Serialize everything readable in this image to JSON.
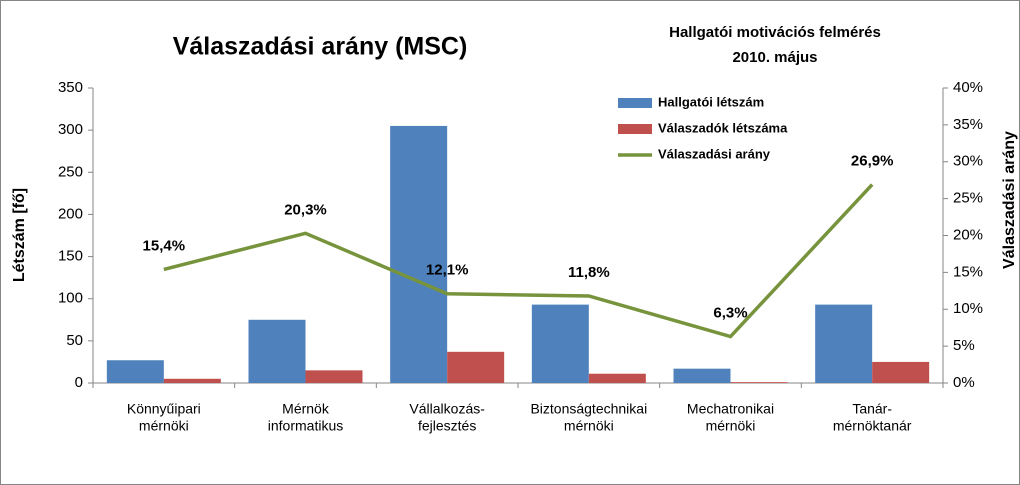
{
  "chart_data": {
    "type": "bar-line",
    "title": "Válaszadási arány (MSC)",
    "subtitle": [
      "Hallgatói motivációs felmérés",
      "2010. május"
    ],
    "y_label": "Létszám [fő]",
    "y2_label": "Válaszadási arány",
    "categories": [
      [
        "Könnyűipari",
        "mérnöki"
      ],
      [
        "Mérnök",
        "informatikus"
      ],
      [
        "Vállalkozás-",
        "fejlesztés"
      ],
      [
        "Biztonságtechnikai",
        "mérnöki"
      ],
      [
        "Mechatronikai",
        "mérnöki"
      ],
      [
        "Tanár-",
        "mérnöktanár"
      ]
    ],
    "series": [
      {
        "name": "Hallgatói létszám",
        "type": "bar",
        "color": "#4f81bd",
        "values": [
          27,
          75,
          305,
          93,
          17,
          93
        ]
      },
      {
        "name": "Válaszadók létszáma",
        "type": "bar",
        "color": "#c0504d",
        "values": [
          5,
          15,
          37,
          11,
          1,
          25
        ]
      },
      {
        "name": "Válaszadási arány",
        "type": "line",
        "axis": "y2",
        "color": "#77933c",
        "values": [
          15.4,
          20.3,
          12.1,
          11.8,
          6.3,
          26.9
        ],
        "value_labels": [
          "15,4%",
          "20,3%",
          "12,1%",
          "11,8%",
          "6,3%",
          "26,9%"
        ]
      }
    ],
    "ylim": [
      0,
      350
    ],
    "yticks": [
      0,
      50,
      100,
      150,
      200,
      250,
      300,
      350
    ],
    "y2lim": [
      0,
      40
    ],
    "y2ticks": [
      {
        "value": 0,
        "label": "0%"
      },
      {
        "value": 5,
        "label": "5%"
      },
      {
        "value": 10,
        "label": "10%"
      },
      {
        "value": 15,
        "label": "15%"
      },
      {
        "value": 20,
        "label": "20%"
      },
      {
        "value": 25,
        "label": "25%"
      },
      {
        "value": 30,
        "label": "30%"
      },
      {
        "value": 35,
        "label": "35%"
      },
      {
        "value": 40,
        "label": "40%"
      }
    ],
    "legend": "top-right",
    "grid": false
  }
}
